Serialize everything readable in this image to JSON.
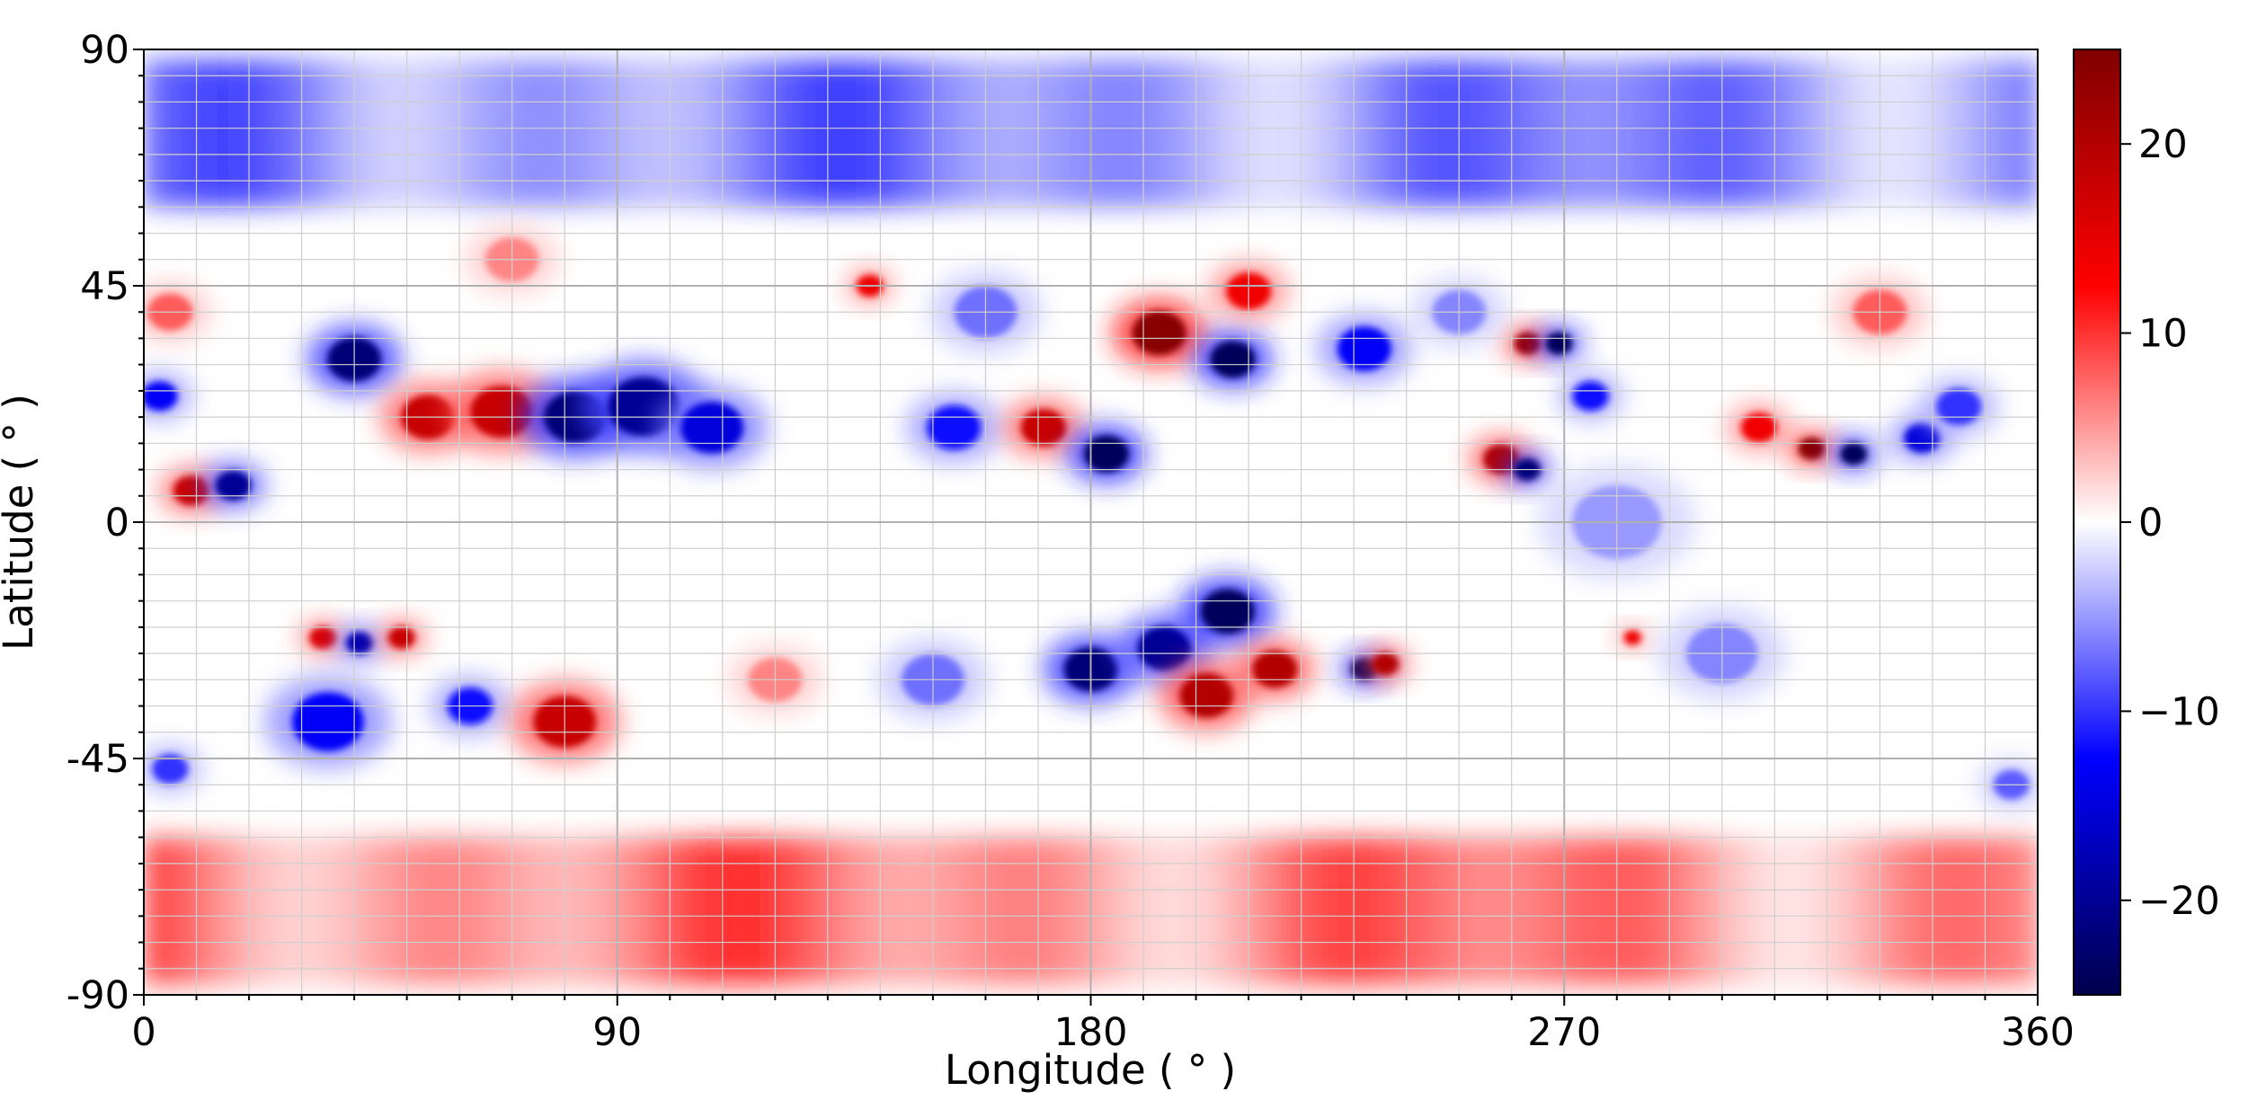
{
  "chart_data": {
    "type": "heatmap",
    "title": "",
    "xlabel": "Longitude ( ° )",
    "ylabel": "Latitude ( ° )",
    "xlim": [
      0,
      360
    ],
    "ylim": [
      -90,
      90
    ],
    "x_ticks": [
      0,
      90,
      180,
      270,
      360
    ],
    "x_tick_labels": [
      "0",
      "90",
      "180",
      "270",
      "360"
    ],
    "y_ticks": [
      90,
      45,
      0,
      -45,
      -90
    ],
    "y_tick_labels": [
      "90",
      "45",
      "0",
      "-45",
      "-90"
    ],
    "grid": true,
    "grid_minor": true,
    "colormap": "seismic",
    "colormap_stops": [
      "#00004c",
      "#0000ff",
      "#ffffff",
      "#ff0000",
      "#7f0000"
    ],
    "colorbar": {
      "vmin": -25,
      "vmax": 25,
      "ticks": [
        20,
        10,
        0,
        -10,
        -20
      ],
      "tick_labels": [
        "20",
        "10",
        "0",
        "−10",
        "−20"
      ],
      "placement": "right"
    },
    "features": [
      {
        "lon": 40,
        "lat": 31,
        "value": -22,
        "size": 6
      },
      {
        "lon": 54,
        "lat": 20,
        "value": 18,
        "size": 6
      },
      {
        "lon": 68,
        "lat": 21,
        "value": 18,
        "size": 7
      },
      {
        "lon": 82,
        "lat": 20,
        "value": -22,
        "size": 7
      },
      {
        "lon": 95,
        "lat": 22,
        "value": -20,
        "size": 8
      },
      {
        "lon": 108,
        "lat": 18,
        "value": -15,
        "size": 7
      },
      {
        "lon": 9,
        "lat": 6,
        "value": 18,
        "size": 4
      },
      {
        "lon": 17,
        "lat": 7,
        "value": -20,
        "size": 4
      },
      {
        "lon": 3,
        "lat": 24,
        "value": -13,
        "size": 4
      },
      {
        "lon": 34,
        "lat": -22,
        "value": 16,
        "size": 3
      },
      {
        "lon": 41,
        "lat": -23,
        "value": -18,
        "size": 3
      },
      {
        "lon": 49,
        "lat": -22,
        "value": 18,
        "size": 3
      },
      {
        "lon": 35,
        "lat": -38,
        "value": -13,
        "size": 8
      },
      {
        "lon": 62,
        "lat": -35,
        "value": -12,
        "size": 5
      },
      {
        "lon": 80,
        "lat": -38,
        "value": 18,
        "size": 7
      },
      {
        "lon": 154,
        "lat": 18,
        "value": -12,
        "size": 6
      },
      {
        "lon": 138,
        "lat": 45,
        "value": 14,
        "size": 3
      },
      {
        "lon": 171,
        "lat": 18,
        "value": 18,
        "size": 5
      },
      {
        "lon": 183,
        "lat": 13,
        "value": -24,
        "size": 5
      },
      {
        "lon": 193,
        "lat": 36,
        "value": 24,
        "size": 6
      },
      {
        "lon": 207,
        "lat": 31,
        "value": -24,
        "size": 5
      },
      {
        "lon": 210,
        "lat": 44,
        "value": 14,
        "size": 5
      },
      {
        "lon": 232,
        "lat": 33,
        "value": -13,
        "size": 6
      },
      {
        "lon": 180,
        "lat": -28,
        "value": -22,
        "size": 6
      },
      {
        "lon": 194,
        "lat": -24,
        "value": -20,
        "size": 6
      },
      {
        "lon": 206,
        "lat": -17,
        "value": -24,
        "size": 6
      },
      {
        "lon": 202,
        "lat": -33,
        "value": 20,
        "size": 6
      },
      {
        "lon": 215,
        "lat": -28,
        "value": 20,
        "size": 5
      },
      {
        "lon": 232,
        "lat": -28,
        "value": -24,
        "size": 3
      },
      {
        "lon": 236,
        "lat": -27,
        "value": 20,
        "size": 3
      },
      {
        "lon": 258,
        "lat": 12,
        "value": 20,
        "size": 4
      },
      {
        "lon": 263,
        "lat": 10,
        "value": -22,
        "size": 3
      },
      {
        "lon": 263,
        "lat": 34,
        "value": 22,
        "size": 3
      },
      {
        "lon": 269,
        "lat": 34,
        "value": -24,
        "size": 3
      },
      {
        "lon": 275,
        "lat": 24,
        "value": -12,
        "size": 4
      },
      {
        "lon": 283,
        "lat": -22,
        "value": 14,
        "size": 2
      },
      {
        "lon": 307,
        "lat": 18,
        "value": 14,
        "size": 4
      },
      {
        "lon": 317,
        "lat": 14,
        "value": 24,
        "size": 3
      },
      {
        "lon": 325,
        "lat": 13,
        "value": -24,
        "size": 3
      },
      {
        "lon": 338,
        "lat": 16,
        "value": -15,
        "size": 4
      },
      {
        "lon": 345,
        "lat": 22,
        "value": -10,
        "size": 5
      },
      {
        "lon": 330,
        "lat": 40,
        "value": 8,
        "size": 6
      },
      {
        "lon": 5,
        "lat": 40,
        "value": 8,
        "size": 5
      },
      {
        "lon": 70,
        "lat": 50,
        "value": 6,
        "size": 6
      },
      {
        "lon": 160,
        "lat": 40,
        "value": -7,
        "size": 7
      },
      {
        "lon": 250,
        "lat": 40,
        "value": -6,
        "size": 6
      },
      {
        "lon": 300,
        "lat": -25,
        "value": -6,
        "size": 8
      },
      {
        "lon": 150,
        "lat": -30,
        "value": -7,
        "size": 7
      },
      {
        "lon": 120,
        "lat": -30,
        "value": 6,
        "size": 6
      },
      {
        "lon": 5,
        "lat": -47,
        "value": -10,
        "size": 4
      },
      {
        "lon": 355,
        "lat": -50,
        "value": -8,
        "size": 4
      },
      {
        "lon": 280,
        "lat": 0,
        "value": -5,
        "size": 10
      }
    ],
    "polar_bands": [
      {
        "lat_min": 60,
        "lat_max": 88,
        "value": -14
      },
      {
        "lat_min": -88,
        "lat_max": -60,
        "value": 15
      }
    ]
  }
}
